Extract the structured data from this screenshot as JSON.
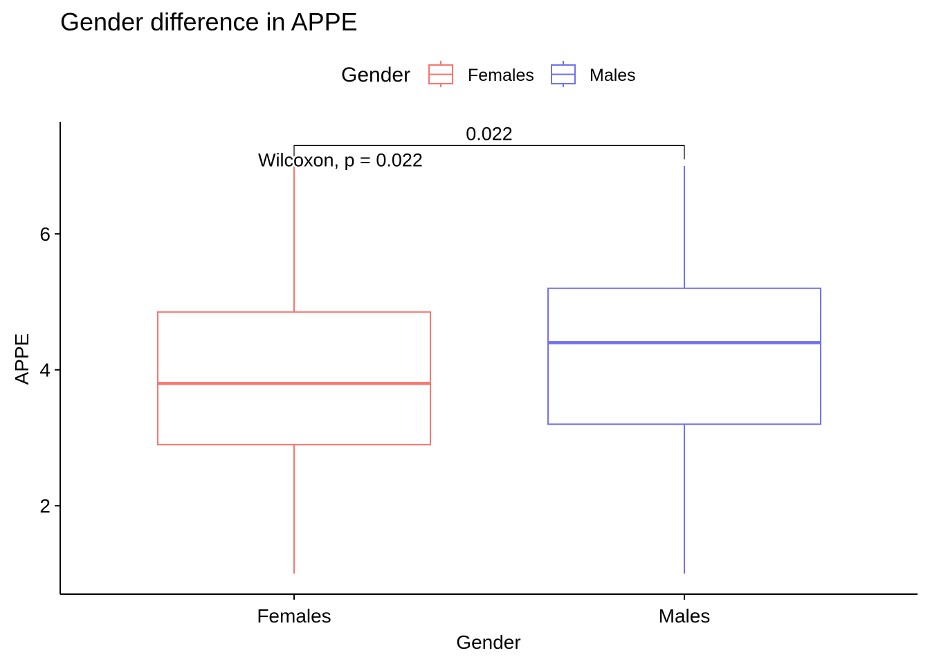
{
  "chart_data": {
    "type": "boxplot",
    "title": "Gender difference in APPE",
    "xlabel": "Gender",
    "ylabel": "APPE",
    "ylim": [
      0.7,
      7.65
    ],
    "yticks": [
      2,
      4,
      6
    ],
    "ytick_labels": [
      "2",
      "4",
      "6"
    ],
    "categories": [
      "Females",
      "Males"
    ],
    "legend": {
      "title": "Gender",
      "position": "top",
      "entries": [
        {
          "label": "Females",
          "color": "#F8766D"
        },
        {
          "label": "Males",
          "color": "#7171EE"
        }
      ]
    },
    "boxes": [
      {
        "category": "Females",
        "min": 1.0,
        "q1": 2.9,
        "median": 3.8,
        "q3": 4.85,
        "max": 7.1,
        "color": "#F8766D"
      },
      {
        "category": "Males",
        "min": 1.0,
        "q1": 3.2,
        "median": 4.4,
        "q3": 5.2,
        "max": 7.0,
        "color": "#7171EE"
      }
    ],
    "annotations": {
      "test_label": "Wilcoxon, p = 0.022",
      "bracket_label": "0.022",
      "bracket_y": 7.3
    },
    "grid": false
  }
}
